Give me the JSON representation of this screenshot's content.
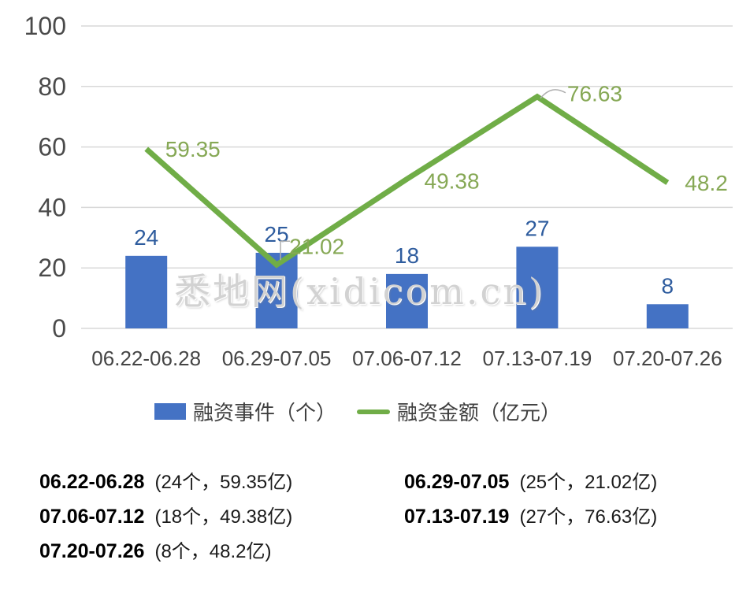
{
  "watermark": "悉地网(xidicom.cn)",
  "legend": [
    {
      "label": "融资事件（个）",
      "color": "#4472C4",
      "marker": "bar-swatch"
    },
    {
      "label": "融资金额（亿元）",
      "color": "#70AD47",
      "marker": "line-swatch"
    }
  ],
  "chart_data": {
    "type": "bar+line combo",
    "title": "",
    "categories": [
      "06.22-06.28",
      "06.29-07.05",
      "07.06-07.12",
      "07.13-07.19",
      "07.20-07.26"
    ],
    "series": [
      {
        "name": "融资事件（个）",
        "type": "bar",
        "color": "#4472C4",
        "label_color": "#2E5C9E",
        "values": [
          24,
          25,
          18,
          27,
          8
        ]
      },
      {
        "name": "融资金额（亿元）",
        "type": "line",
        "color": "#70AD47",
        "label_color": "#86A855",
        "values": [
          59.35,
          21.02,
          49.38,
          76.63,
          48.2
        ]
      }
    ],
    "xlabel": "",
    "ylabel": "",
    "ylim": [
      0,
      100
    ],
    "yticks": [
      0,
      20,
      40,
      60,
      80,
      100
    ],
    "grid": true,
    "gridline_color": "#D9D9D9",
    "axis_label_color": "#4A4A4A",
    "legend_position": "bottom"
  },
  "summary": {
    "rows": [
      {
        "date": "06.22-06.28",
        "detail": "(24个，59.35亿)"
      },
      {
        "date": "06.29-07.05",
        "detail": "(25个，21.02亿)"
      },
      {
        "date": "07.06-07.12",
        "detail": "(18个，49.38亿)"
      },
      {
        "date": "07.13-07.19",
        "detail": "(27个，76.63亿)"
      },
      {
        "date": "07.20-07.26",
        "detail": "(8个，48.2亿)"
      }
    ]
  }
}
